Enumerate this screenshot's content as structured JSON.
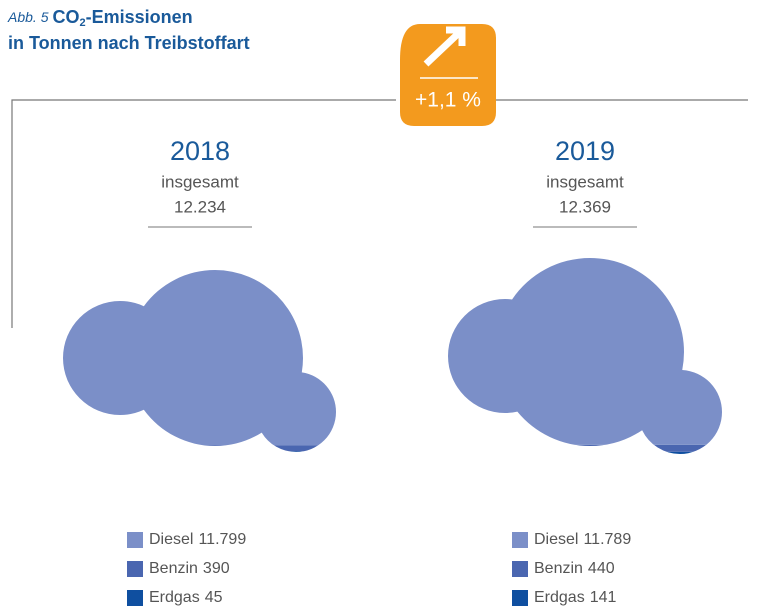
{
  "header": {
    "figure_label": "Abb. 5",
    "title_prefix": "CO",
    "title_subscript": "2",
    "title_suffix": "-Emissionen",
    "title_line2": "in Tonnen nach Treibstoffart"
  },
  "badge": {
    "change": "+1,1 %"
  },
  "chart_data": [
    {
      "type": "cloud",
      "title": "2018",
      "subtitle": "insgesamt",
      "total": 12234,
      "total_label": "12.234",
      "categories": [
        "Diesel",
        "Benzin",
        "Erdgas"
      ],
      "values": [
        11799,
        390,
        45
      ],
      "value_labels": [
        "11.799",
        "390",
        "45"
      ],
      "colors": [
        "#7b8fc8",
        "#4a66b0",
        "#0f4fa0"
      ]
    },
    {
      "type": "cloud",
      "title": "2019",
      "subtitle": "insgesamt",
      "total": 12369,
      "total_label": "12.369",
      "categories": [
        "Diesel",
        "Benzin",
        "Erdgas"
      ],
      "values": [
        11789,
        440,
        141
      ],
      "value_labels": [
        "11.789",
        "440",
        "141"
      ],
      "colors": [
        "#7b8fc8",
        "#4a66b0",
        "#0f4fa0"
      ]
    }
  ]
}
